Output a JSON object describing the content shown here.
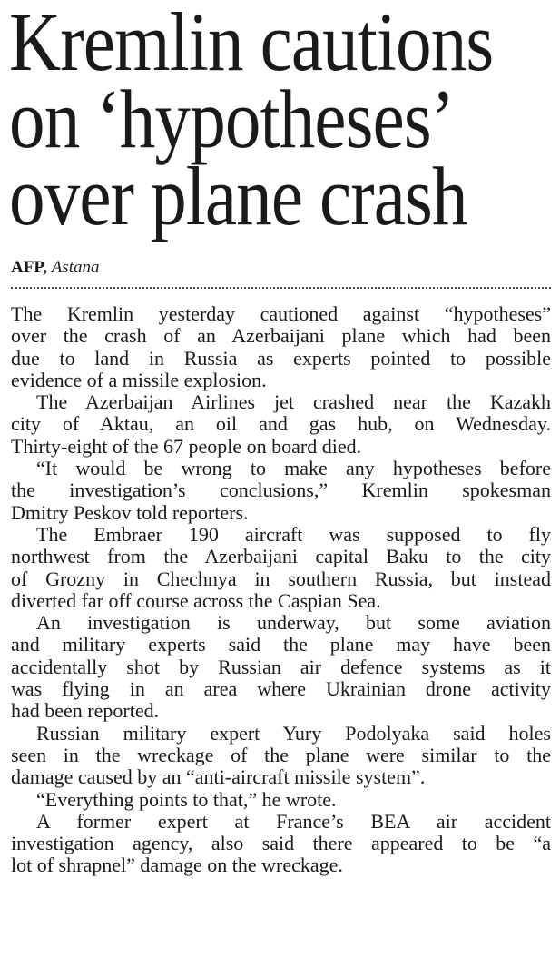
{
  "headline": [
    "Kremlin cautions",
    "on ‘hypotheses’",
    "over plane crash"
  ],
  "byline": {
    "agency": "AFP,",
    "location": "Astana"
  },
  "paragraphs": [
    [
      "The Kremlin yesterday cautioned against “hypotheses”",
      "over the crash of an Azerbaijani plane which had been",
      "due to land in Russia as experts pointed to possible",
      "evidence of a missile explosion."
    ],
    [
      "The Azerbaijan Airlines jet crashed near the Kazakh",
      "city of Aktau, an oil and gas hub, on Wednesday.",
      "Thirty-eight of the 67 people on board died."
    ],
    [
      "“It would be wrong to make any hypotheses before",
      "the investigation’s conclusions,” Kremlin spokesman",
      "Dmitry Peskov told reporters."
    ],
    [
      "The Embraer 190 aircraft was supposed to fly",
      "northwest from the Azerbaijani capital Baku to the city",
      "of Grozny in Chechnya in southern Russia, but instead",
      "diverted far off course across the Caspian Sea."
    ],
    [
      "An investigation is underway, but some aviation",
      "and military experts said the plane may have been",
      "accidentally shot by Russian air defence systems as it",
      "was flying in an area where Ukrainian drone activity",
      "had been reported."
    ],
    [
      "Russian military expert Yury Podolyaka said holes",
      "seen in the wreckage of the plane were similar to the",
      "damage caused by an “anti-aircraft missile system”."
    ],
    [
      "“Everything points to that,” he wrote."
    ],
    [
      "A former expert at France’s BEA air accident",
      "investigation agency, also said there appeared to be “a",
      "lot of shrapnel” damage on the wreckage."
    ]
  ]
}
